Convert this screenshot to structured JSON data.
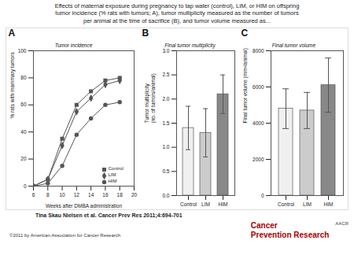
{
  "title": "Effects of maternal exposure during pregnancy to tap water (control), LIM, or HIM on offspring\ntumor incidence (% rats with tumors; A), tumor multiplicity measured as the number of tumors\nper animal at the time of sacrifice (B), and tumor volume measured as...",
  "annotations": [
    "Tina Skau Nielsen et al. Cancer Prev Res 2011;4:694-701",
    "©2011 by American Association for Cancer Research",
    "Cancer\nPrevention Research",
    "AACR"
  ],
  "chart_data": [
    {
      "type": "line",
      "panel_label": "A",
      "subtitle": "Tumor incidence",
      "x_label": "Weeks after DMBA administration",
      "y_label": "% rats with mammary tumors",
      "xlim": [
        6,
        20
      ],
      "ylim": [
        0,
        100
      ],
      "xticks": [
        6,
        8,
        10,
        12,
        14,
        16,
        18,
        20
      ],
      "yticks": [
        0,
        20,
        40,
        60,
        80,
        100
      ],
      "x": [
        6,
        8,
        10,
        12,
        14,
        16,
        18
      ],
      "series": [
        {
          "name": "Control",
          "color": "#555555",
          "marker": "square",
          "values": [
            0,
            5,
            35,
            60,
            70,
            78,
            80
          ]
        },
        {
          "name": "LIM",
          "color": "#555555",
          "marker": "diamond",
          "values": [
            0,
            5,
            30,
            55,
            65,
            75,
            78
          ]
        },
        {
          "name": "HIM",
          "color": "#555555",
          "marker": "circle",
          "values": [
            0,
            2,
            15,
            38,
            50,
            60,
            62
          ]
        }
      ],
      "legend": "lower right",
      "grid": false
    },
    {
      "type": "bar",
      "panel_label": "B",
      "subtitle": "Final tumor multiplicity",
      "y_label": "Tumor multiplicity\n(no. of tumors/animal)",
      "categories": [
        "Control",
        "LIM",
        "HIM"
      ],
      "values": [
        1.4,
        1.3,
        2.1
      ],
      "errors": [
        0.45,
        0.5,
        0.4
      ],
      "colors": [
        "#f0f0f0",
        "#cccccc",
        "#888888"
      ],
      "ylim": [
        0,
        3.0
      ],
      "yticks": [
        {
          "value": 0,
          "label": "0.0"
        },
        0.5,
        {
          "value": 1,
          "label": "1.0"
        },
        1.5,
        {
          "value": 2,
          "label": "2.0"
        },
        2.5,
        {
          "value": 3,
          "label": "3.0"
        }
      ],
      "grid": false
    },
    {
      "type": "bar",
      "panel_label": "C",
      "subtitle": "Final tumor volume",
      "y_label": "Final tumor volume (mm³/animal)",
      "categories": [
        "Control",
        "LIM",
        "HIM"
      ],
      "values": [
        4800,
        4700,
        6100
      ],
      "errors": [
        1100,
        1000,
        1500
      ],
      "colors": [
        "#f0f0f0",
        "#cccccc",
        "#888888"
      ],
      "ylim": [
        0,
        8000
      ],
      "yticks": [
        0,
        2000,
        4000,
        6000,
        8000
      ],
      "grid": false
    }
  ]
}
